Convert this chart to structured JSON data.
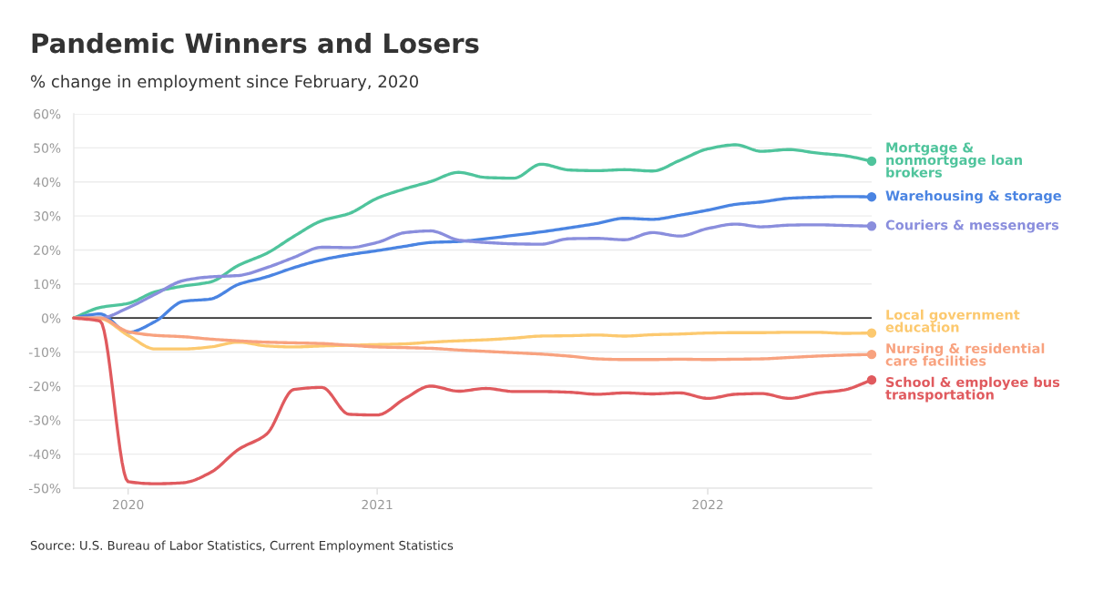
{
  "chart_data": {
    "type": "line",
    "title": "Pandemic Winners and Losers",
    "subtitle": "% change in employment since February, 2020",
    "annotations": [
      "Source: U.S. Bureau of Labor Statistics, Current Employment Statistics"
    ],
    "x": [
      "2020-02",
      "2020-03",
      "2020-04",
      "2020-05",
      "2020-06",
      "2020-07",
      "2020-08",
      "2020-09",
      "2020-10",
      "2020-11",
      "2020-12",
      "2021-01",
      "2021-02",
      "2021-03",
      "2021-04",
      "2021-05",
      "2021-06",
      "2021-07",
      "2021-08",
      "2021-09",
      "2021-10",
      "2021-11",
      "2021-12",
      "2022-01",
      "2022-02",
      "2022-03",
      "2022-04",
      "2022-05",
      "2022-06",
      "2022-07"
    ],
    "series": [
      {
        "name": "Mortgage &\nnonmortgage loan\nbrokers",
        "color": "#4fc49c",
        "values": [
          0,
          3.1,
          4.3,
          7.7,
          9.4,
          10.6,
          15.5,
          19,
          24,
          28.6,
          30.7,
          35.2,
          38.0,
          40.1,
          42.8,
          41.3,
          41.1,
          45.2,
          43.5,
          43.3,
          43.6,
          43.2,
          46.3,
          49.7,
          50.9,
          49.0,
          49.5,
          48.5,
          47.7,
          46.1
        ]
      },
      {
        "name": "Warehousing & storage",
        "color": "#4a84e2",
        "values": [
          0,
          1.2,
          -4.2,
          -1,
          4.9,
          5.6,
          9.9,
          12.1,
          14.8,
          17.1,
          18.6,
          19.8,
          21.1,
          22.2,
          22.5,
          23.3,
          24.3,
          25.3,
          26.5,
          27.8,
          29.3,
          29.0,
          30.2,
          31.7,
          33.4,
          34.1,
          35.2,
          35.5,
          35.7,
          35.6
        ]
      },
      {
        "name": "Couriers & messengers",
        "color": "#8a8edd",
        "values": [
          0,
          0,
          3.0,
          7.0,
          11.0,
          12.1,
          12.5,
          14.8,
          17.8,
          20.8,
          20.7,
          22.2,
          25.1,
          25.6,
          22.9,
          22.2,
          21.8,
          21.7,
          23.3,
          23.4,
          23.0,
          25.1,
          24.1,
          26.3,
          27.6,
          26.8,
          27.3,
          27.4,
          27.2,
          27.0
        ]
      },
      {
        "name": "Local government\neducation",
        "color": "#fcc96f",
        "values": [
          0,
          -0.2,
          -5.1,
          -9.1,
          -9.1,
          -8.5,
          -7.1,
          -8.2,
          -8.5,
          -8.2,
          -8.0,
          -7.8,
          -7.6,
          -7.1,
          -6.7,
          -6.4,
          -5.9,
          -5.3,
          -5.2,
          -5.0,
          -5.3,
          -4.9,
          -4.7,
          -4.4,
          -4.3,
          -4.3,
          -4.2,
          -4.2,
          -4.5,
          -4.4
        ]
      },
      {
        "name": "Nursing & residential\ncare facilities",
        "color": "#f8a27f",
        "values": [
          0,
          0,
          -4.0,
          -5.1,
          -5.5,
          -6.2,
          -6.7,
          -7.1,
          -7.3,
          -7.5,
          -8.0,
          -8.5,
          -8.7,
          -8.9,
          -9.4,
          -9.8,
          -10.2,
          -10.6,
          -11.2,
          -12.0,
          -12.2,
          -12.2,
          -12.1,
          -12.2,
          -12.1,
          -12.0,
          -11.6,
          -11.2,
          -10.9,
          -10.7
        ]
      },
      {
        "name": "School & employee bus\ntransportation",
        "color": "#e05a5e",
        "values": [
          0,
          -0.9,
          -48.1,
          -48.7,
          -48.4,
          -45.4,
          -38.6,
          -34.1,
          -21.0,
          -20.4,
          -28.3,
          -28.5,
          -23.6,
          -20.0,
          -21.5,
          -20.7,
          -21.6,
          -21.6,
          -21.8,
          -22.4,
          -22.0,
          -22.3,
          -22.0,
          -23.6,
          -22.4,
          -22.2,
          -23.6,
          -22.1,
          -21.1,
          -18.2
        ]
      }
    ],
    "xlim": [
      "2020-02",
      "2022-07"
    ],
    "xticks": [
      {
        "value": "2020-04",
        "label": "2020"
      },
      {
        "value": "2021-01",
        "label": "2021"
      },
      {
        "value": "2022-01",
        "label": "2022"
      }
    ],
    "ylim": [
      -50,
      60
    ],
    "yticks": [
      {
        "value": -50,
        "label": "-50%"
      },
      {
        "value": -40,
        "label": "-40%"
      },
      {
        "value": -30,
        "label": "-30%"
      },
      {
        "value": -20,
        "label": "-20%"
      },
      {
        "value": -10,
        "label": "-10%"
      },
      {
        "value": 0,
        "label": "0%"
      },
      {
        "value": 10,
        "label": "10%"
      },
      {
        "value": 20,
        "label": "20%"
      },
      {
        "value": 30,
        "label": "30%"
      },
      {
        "value": 40,
        "label": "40%"
      },
      {
        "value": 50,
        "label": "50%"
      },
      {
        "value": 60,
        "label": "60%"
      }
    ],
    "ref_lines": [
      {
        "axis": "y",
        "value": 0,
        "color": "#333333"
      }
    ],
    "grid": "y",
    "legend": false,
    "line_style": "solid"
  }
}
